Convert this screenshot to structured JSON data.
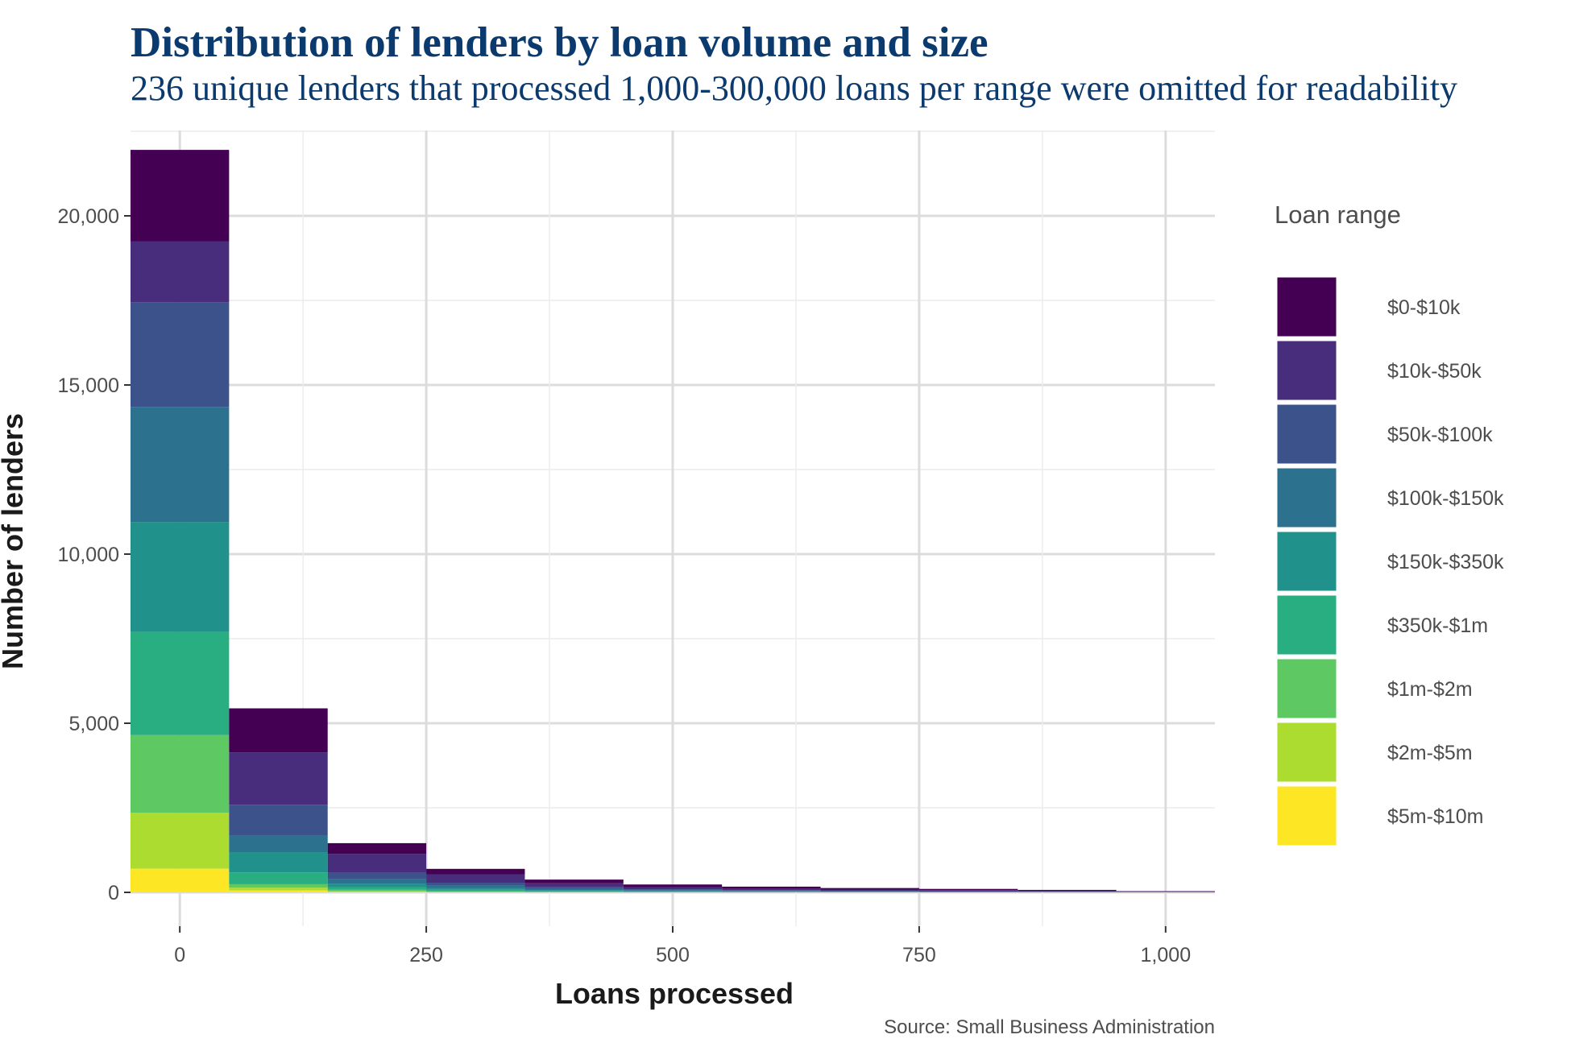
{
  "chart_data": {
    "type": "bar",
    "stacked": true,
    "title": "Distribution of lenders by loan volume and size",
    "subtitle": "236 unique lenders that processed 1,000-300,000 loans per range were omitted for readability",
    "xlabel": "Loans processed",
    "ylabel": "Number of lenders",
    "caption": "Source: Small Business Administration",
    "xlim": [
      -50,
      1050
    ],
    "ylim": [
      0,
      22000
    ],
    "x_ticks": [
      0,
      250,
      500,
      750,
      1000
    ],
    "x_tick_labels": [
      "0",
      "250",
      "500",
      "750",
      "1,000"
    ],
    "y_ticks": [
      0,
      5000,
      10000,
      15000,
      20000
    ],
    "y_tick_labels": [
      "0",
      "5,000",
      "10,000",
      "15,000",
      "20,000"
    ],
    "grid": true,
    "legend_title": "Loan range",
    "legend_position": "right",
    "bin_width": 100,
    "bins": [
      0,
      100,
      200,
      300,
      400,
      500,
      600,
      700,
      800,
      900,
      1000
    ],
    "series": [
      {
        "name": "$0-$10k",
        "color": "#440154",
        "values": [
          2700,
          1300,
          320,
          160,
          110,
          80,
          60,
          45,
          35,
          25,
          10
        ]
      },
      {
        "name": "$10k-$50k",
        "color": "#472d7b",
        "values": [
          1800,
          1550,
          550,
          250,
          110,
          60,
          45,
          35,
          30,
          20,
          10
        ]
      },
      {
        "name": "$50k-$100k",
        "color": "#3b528b",
        "values": [
          3100,
          900,
          200,
          90,
          60,
          30,
          22,
          18,
          15,
          10,
          6
        ]
      },
      {
        "name": "$100k-$150k",
        "color": "#2c728e",
        "values": [
          3400,
          500,
          140,
          65,
          30,
          20,
          15,
          10,
          8,
          6,
          4
        ]
      },
      {
        "name": "$150k-$350k",
        "color": "#21918c",
        "values": [
          3250,
          600,
          100,
          55,
          30,
          20,
          12,
          8,
          6,
          5,
          3
        ]
      },
      {
        "name": "$350k-$1m",
        "color": "#28ae80",
        "values": [
          3050,
          350,
          70,
          40,
          20,
          12,
          8,
          6,
          4,
          3,
          2
        ]
      },
      {
        "name": "$1m-$2m",
        "color": "#5ec962",
        "values": [
          2300,
          100,
          40,
          20,
          10,
          6,
          4,
          3,
          2,
          2,
          1
        ]
      },
      {
        "name": "$2m-$5m",
        "color": "#addc30",
        "values": [
          1650,
          80,
          20,
          10,
          5,
          3,
          2,
          2,
          1,
          1,
          1
        ]
      },
      {
        "name": "$5m-$10m",
        "color": "#fde725",
        "values": [
          700,
          60,
          15,
          5,
          3,
          2,
          1,
          1,
          1,
          1,
          1
        ]
      }
    ]
  }
}
